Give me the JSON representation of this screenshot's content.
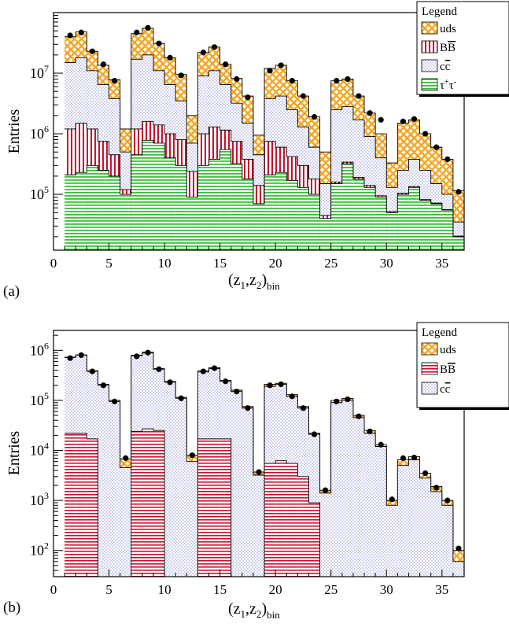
{
  "colors": {
    "uds": "#f5a623",
    "bb": "#c8102e",
    "cc": "#9090d8",
    "tau": "#3bbf3b",
    "marker": "#000000"
  },
  "chart_data": [
    {
      "panel_label": "(a)",
      "type": "bar",
      "stacked": true,
      "log_y": true,
      "ylabel": "Entries",
      "xlabel_main": "(z",
      "xlabel_sub1": "1",
      "xlabel_mid": ",z",
      "xlabel_sub2": "2",
      "xlabel_close": ")",
      "xlabel_sub3": "bin",
      "xlim": [
        0,
        37
      ],
      "ylim": [
        12000,
        100000000
      ],
      "x_ticks": [
        0,
        5,
        10,
        15,
        20,
        25,
        30,
        35
      ],
      "y_ticks": [
        {
          "value": 100000,
          "base": "10",
          "exp": "5"
        },
        {
          "value": 1000000,
          "base": "10",
          "exp": "6"
        },
        {
          "value": 10000000,
          "base": "10",
          "exp": "7"
        }
      ],
      "legend": {
        "title": "Legend",
        "placement": "top-right",
        "entries": [
          {
            "key": "uds",
            "base": "uds",
            "sup": ""
          },
          {
            "key": "bb",
            "base": "B",
            "over": "B"
          },
          {
            "key": "cc",
            "base": "c",
            "over": "c"
          },
          {
            "key": "tau",
            "base": "τ",
            "sup": "+",
            "base2": "τ",
            "sup2": "-"
          }
        ]
      },
      "series_order": [
        "tau",
        "bb",
        "cc",
        "uds"
      ],
      "series": [
        {
          "key": "tau",
          "values": [
            210000,
            230000,
            300000,
            250000,
            200000,
            100000,
            450000,
            780000,
            700000,
            400000,
            300000,
            90000,
            300000,
            380000,
            550000,
            320000,
            180000,
            70000,
            210000,
            230000,
            170000,
            130000,
            100000,
            40000,
            150000,
            320000,
            180000,
            130000,
            90000,
            50000,
            100000,
            130000,
            80000,
            70000,
            55000,
            20000
          ]
        },
        {
          "key": "bb",
          "values": [
            1200000,
            1500000,
            1200000,
            750000,
            450000,
            120000,
            1200000,
            1600000,
            1400000,
            1000000,
            800000,
            240000,
            1000000,
            1300000,
            1150000,
            750000,
            380000,
            140000,
            750000,
            600000,
            420000,
            300000,
            180000,
            45000,
            160000,
            340000,
            190000,
            140000,
            95000,
            52000,
            105000,
            135000,
            82000,
            72000,
            56000,
            20500
          ]
        },
        {
          "key": "cc",
          "values": [
            15000000,
            18000000,
            11000000,
            6500000,
            3800000,
            500000,
            17000000,
            20000000,
            11000000,
            6500000,
            3500000,
            700000,
            9000000,
            11000000,
            6500000,
            3200000,
            1500000,
            450000,
            3800000,
            4200000,
            2500000,
            1300000,
            600000,
            150000,
            2500000,
            2800000,
            1700000,
            900000,
            400000,
            130000,
            250000,
            380000,
            250000,
            150000,
            100000,
            35000
          ]
        },
        {
          "key": "uds",
          "values": [
            40000000,
            48000000,
            23000000,
            13500000,
            7800000,
            1200000,
            45000000,
            55000000,
            31000000,
            18000000,
            9500000,
            2000000,
            22000000,
            27000000,
            14000000,
            8200000,
            4200000,
            950000,
            12000000,
            13500000,
            7500000,
            4200000,
            1900000,
            500000,
            7500000,
            8000000,
            4200000,
            2200000,
            1000000,
            330000,
            1500000,
            1700000,
            1000000,
            600000,
            380000,
            115000
          ]
        }
      ],
      "markers": [
        42000000,
        47000000,
        23000000,
        14000000,
        7500000,
        null,
        47000000,
        56000000,
        31000000,
        18000000,
        9200000,
        null,
        22000000,
        27000000,
        14000000,
        8000000,
        4000000,
        null,
        11000000,
        13500000,
        7500000,
        4200000,
        1900000,
        null,
        7500000,
        8000000,
        4200000,
        2200000,
        1700000,
        null,
        1600000,
        1750000,
        1000000,
        600000,
        380000,
        110000
      ]
    },
    {
      "panel_label": "(b)",
      "type": "bar",
      "stacked": true,
      "log_y": true,
      "ylabel": "Entries",
      "xlabel_main": "(z",
      "xlabel_sub1": "1",
      "xlabel_mid": ",z",
      "xlabel_sub2": "2",
      "xlabel_close": ")",
      "xlabel_sub3": "bin",
      "xlim": [
        0,
        37
      ],
      "ylim": [
        30,
        2500000
      ],
      "x_ticks": [
        0,
        5,
        10,
        15,
        20,
        25,
        30,
        35
      ],
      "y_ticks": [
        {
          "value": 100,
          "base": "10",
          "exp": "2"
        },
        {
          "value": 1000,
          "base": "10",
          "exp": "3"
        },
        {
          "value": 10000,
          "base": "10",
          "exp": "4"
        },
        {
          "value": 100000,
          "base": "10",
          "exp": "5"
        },
        {
          "value": 1000000,
          "base": "10",
          "exp": "6"
        }
      ],
      "legend": {
        "title": "Legend",
        "placement": "top-right",
        "entries": [
          {
            "key": "uds",
            "base": "uds",
            "sup": ""
          },
          {
            "key": "bb",
            "base": "B",
            "over": "B"
          },
          {
            "key": "cc",
            "base": "c",
            "over": "c"
          }
        ]
      },
      "series_order": [
        "bb",
        "cc",
        "uds"
      ],
      "series": [
        {
          "key": "bb",
          "values": [
            22000,
            22000,
            17000,
            0,
            0,
            0,
            24000,
            27000,
            25000,
            0,
            0,
            0,
            17000,
            17000,
            17000,
            0,
            0,
            0,
            5500,
            6200,
            5500,
            3000,
            900,
            0,
            0,
            0,
            0,
            0,
            0,
            0,
            0,
            0,
            0,
            0,
            0,
            0
          ]
        },
        {
          "key": "cc",
          "values": [
            720000,
            800000,
            380000,
            200000,
            95000,
            4500,
            780000,
            880000,
            420000,
            230000,
            110000,
            6000,
            370000,
            430000,
            240000,
            150000,
            70000,
            3200,
            190000,
            210000,
            120000,
            70000,
            21000,
            1400,
            90000,
            100000,
            45000,
            22000,
            12000,
            800,
            5000,
            6500,
            2800,
            1500,
            800,
            60
          ]
        },
        {
          "key": "uds",
          "values": [
            730000,
            810000,
            390000,
            210000,
            100000,
            6800,
            800000,
            920000,
            430000,
            240000,
            115000,
            8000,
            390000,
            450000,
            250000,
            160000,
            75000,
            3700,
            210000,
            220000,
            130000,
            75000,
            22000,
            1600,
            100000,
            110000,
            50000,
            25000,
            13000,
            1000,
            6500,
            7500,
            3500,
            1900,
            1000,
            100
          ]
        }
      ],
      "markers": [
        700000,
        800000,
        380000,
        200000,
        95000,
        7000,
        760000,
        900000,
        420000,
        230000,
        110000,
        8000,
        380000,
        440000,
        240000,
        150000,
        70000,
        3700,
        200000,
        210000,
        120000,
        70000,
        21000,
        1600,
        95000,
        105000,
        48000,
        24000,
        13000,
        1050,
        7000,
        7200,
        3500,
        1800,
        1000,
        110
      ]
    }
  ]
}
